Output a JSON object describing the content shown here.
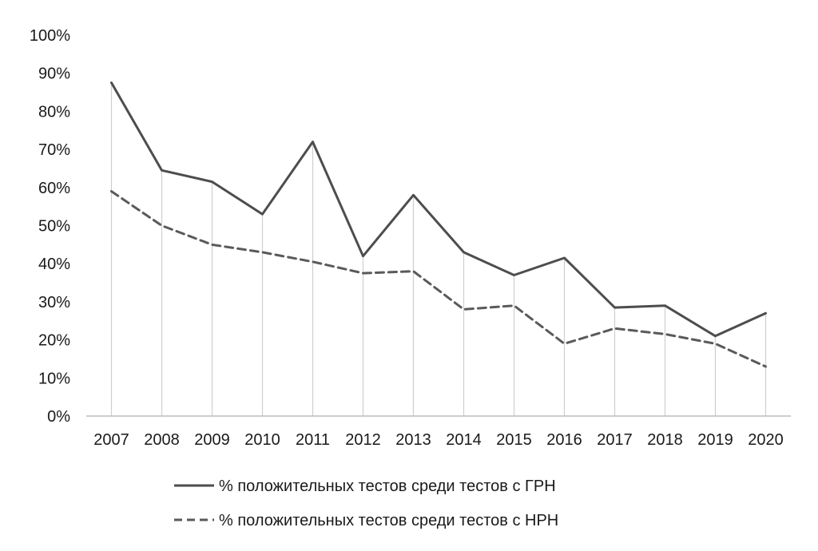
{
  "chart_data": {
    "type": "line",
    "categories": [
      "2007",
      "2008",
      "2009",
      "2010",
      "2011",
      "2012",
      "2013",
      "2014",
      "2015",
      "2016",
      "2017",
      "2018",
      "2019",
      "2020"
    ],
    "y_ticks": [
      "0%",
      "10%",
      "20%",
      "30%",
      "40%",
      "50%",
      "60%",
      "70%",
      "80%",
      "90%",
      "100%"
    ],
    "ylim": [
      0,
      100
    ],
    "grid": false,
    "drop_lines": true,
    "legend_position": "bottom",
    "series": [
      {
        "name": "% положительных тестов среди тестов с ГРН",
        "style": "solid",
        "color": "#4d4d4d",
        "values": [
          87.5,
          64.5,
          61.5,
          53,
          72,
          42,
          58,
          43,
          37,
          41.5,
          28.5,
          29,
          21,
          27
        ]
      },
      {
        "name": "% положительных тестов среди тестов с НРН",
        "style": "dashed",
        "color": "#5a5a5a",
        "values": [
          59,
          50,
          45,
          43,
          40.5,
          37.5,
          38,
          28,
          29,
          19,
          23,
          21.5,
          19,
          13
        ]
      }
    ]
  }
}
